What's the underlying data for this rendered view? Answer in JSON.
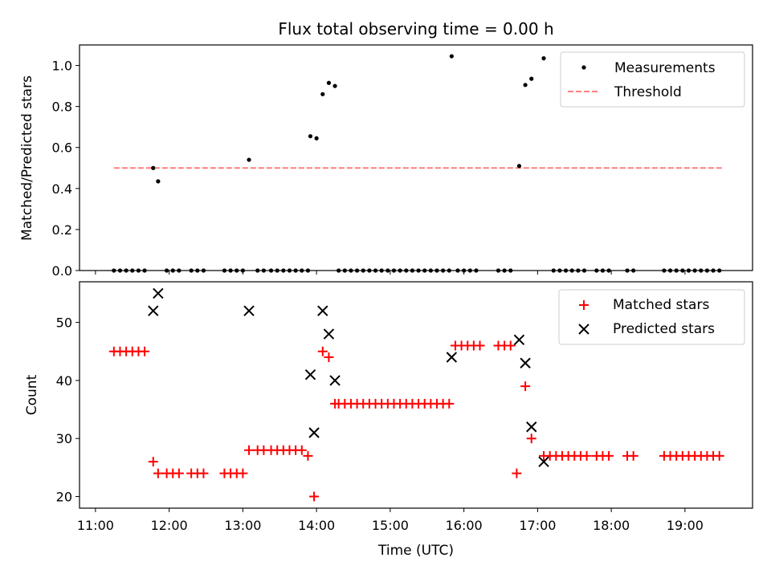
{
  "chart_data": [
    {
      "type": "scatter",
      "title": "Flux total observing time = 0.00 h",
      "xlabel": "",
      "ylabel": "Matched/Predicted stars",
      "xlim": [
        "10:47",
        "19:55"
      ],
      "ylim": [
        0,
        1.1
      ],
      "yticks": [
        0.0,
        0.2,
        0.4,
        0.6,
        0.8,
        1.0
      ],
      "ytick_labels": [
        "0.0",
        "0.2",
        "0.4",
        "0.6",
        "0.8",
        "1.0"
      ],
      "grid": false,
      "legend_position": "top-right",
      "series": [
        {
          "name": "Measurements",
          "color": "#000000",
          "marker": "dot",
          "points": [
            [
              "11:15",
              0
            ],
            [
              "11:20",
              0
            ],
            [
              "11:25",
              0
            ],
            [
              "11:30",
              0
            ],
            [
              "11:35",
              0
            ],
            [
              "11:40",
              0
            ],
            [
              "11:47",
              0.5
            ],
            [
              "11:51",
              0.435
            ],
            [
              "11:58",
              0
            ],
            [
              "12:03",
              0
            ],
            [
              "12:08",
              0
            ],
            [
              "12:18",
              0
            ],
            [
              "12:23",
              0
            ],
            [
              "12:28",
              0
            ],
            [
              "12:45",
              0
            ],
            [
              "12:50",
              0
            ],
            [
              "12:55",
              0
            ],
            [
              "13:00",
              0
            ],
            [
              "13:05",
              0.54
            ],
            [
              "13:12",
              0
            ],
            [
              "13:17",
              0
            ],
            [
              "13:23",
              0
            ],
            [
              "13:28",
              0
            ],
            [
              "13:33",
              0
            ],
            [
              "13:38",
              0
            ],
            [
              "13:43",
              0
            ],
            [
              "13:48",
              0
            ],
            [
              "13:53",
              0
            ],
            [
              "13:55",
              0.655
            ],
            [
              "14:00",
              0.645
            ],
            [
              "14:05",
              0.86
            ],
            [
              "14:10",
              0.915
            ],
            [
              "14:15",
              0.9
            ],
            [
              "14:18",
              0
            ],
            [
              "14:23",
              0
            ],
            [
              "14:28",
              0
            ],
            [
              "14:33",
              0
            ],
            [
              "14:38",
              0
            ],
            [
              "14:43",
              0
            ],
            [
              "14:48",
              0
            ],
            [
              "14:53",
              0
            ],
            [
              "14:58",
              0
            ],
            [
              "15:03",
              0
            ],
            [
              "15:08",
              0
            ],
            [
              "15:13",
              0
            ],
            [
              "15:18",
              0
            ],
            [
              "15:23",
              0
            ],
            [
              "15:28",
              0
            ],
            [
              "15:33",
              0
            ],
            [
              "15:38",
              0
            ],
            [
              "15:43",
              0
            ],
            [
              "15:48",
              0
            ],
            [
              "15:50",
              1.045
            ],
            [
              "15:55",
              0
            ],
            [
              "16:00",
              0
            ],
            [
              "16:05",
              0
            ],
            [
              "16:10",
              0
            ],
            [
              "16:28",
              0
            ],
            [
              "16:33",
              0
            ],
            [
              "16:38",
              0
            ],
            [
              "16:45",
              0.51
            ],
            [
              "16:50",
              0.905
            ],
            [
              "16:55",
              0.935
            ],
            [
              "17:05",
              1.035
            ],
            [
              "17:13",
              0
            ],
            [
              "17:18",
              0
            ],
            [
              "17:23",
              0
            ],
            [
              "17:28",
              0
            ],
            [
              "17:33",
              0
            ],
            [
              "17:38",
              0
            ],
            [
              "17:48",
              0
            ],
            [
              "17:53",
              0
            ],
            [
              "17:58",
              0
            ],
            [
              "18:13",
              0
            ],
            [
              "18:18",
              0
            ],
            [
              "18:43",
              0
            ],
            [
              "18:48",
              0
            ],
            [
              "18:53",
              0
            ],
            [
              "18:58",
              0
            ],
            [
              "19:03",
              0
            ],
            [
              "19:08",
              0
            ],
            [
              "19:13",
              0
            ],
            [
              "19:18",
              0
            ],
            [
              "19:23",
              0
            ],
            [
              "19:28",
              0
            ]
          ]
        },
        {
          "name": "Threshold",
          "color": "#ff7f7f",
          "style": "dashed",
          "points": [
            [
              "11:15",
              0.5
            ],
            [
              "19:30",
              0.5
            ]
          ]
        }
      ]
    },
    {
      "type": "scatter",
      "title": "",
      "xlabel": "Time (UTC)",
      "ylabel": "Count",
      "xlim": [
        "10:47",
        "19:55"
      ],
      "ylim": [
        18,
        57
      ],
      "xticks": [
        "11:00",
        "12:00",
        "13:00",
        "14:00",
        "15:00",
        "16:00",
        "17:00",
        "18:00",
        "19:00"
      ],
      "yticks": [
        20,
        30,
        40,
        50
      ],
      "ytick_labels": [
        "20",
        "30",
        "40",
        "50"
      ],
      "grid": false,
      "legend_position": "top-right",
      "series": [
        {
          "name": "Matched stars",
          "color": "#ff0000",
          "marker": "plus",
          "points": [
            [
              "11:15",
              45
            ],
            [
              "11:20",
              45
            ],
            [
              "11:25",
              45
            ],
            [
              "11:30",
              45
            ],
            [
              "11:35",
              45
            ],
            [
              "11:40",
              45
            ],
            [
              "11:47",
              26
            ],
            [
              "11:51",
              24
            ],
            [
              "11:58",
              24
            ],
            [
              "12:03",
              24
            ],
            [
              "12:08",
              24
            ],
            [
              "12:18",
              24
            ],
            [
              "12:23",
              24
            ],
            [
              "12:28",
              24
            ],
            [
              "12:45",
              24
            ],
            [
              "12:50",
              24
            ],
            [
              "12:55",
              24
            ],
            [
              "13:00",
              24
            ],
            [
              "13:05",
              28
            ],
            [
              "13:12",
              28
            ],
            [
              "13:17",
              28
            ],
            [
              "13:23",
              28
            ],
            [
              "13:28",
              28
            ],
            [
              "13:33",
              28
            ],
            [
              "13:38",
              28
            ],
            [
              "13:43",
              28
            ],
            [
              "13:48",
              28
            ],
            [
              "13:53",
              27
            ],
            [
              "13:58",
              20
            ],
            [
              "14:05",
              45
            ],
            [
              "14:10",
              44
            ],
            [
              "14:15",
              36
            ],
            [
              "14:18",
              36
            ],
            [
              "14:23",
              36
            ],
            [
              "14:28",
              36
            ],
            [
              "14:33",
              36
            ],
            [
              "14:38",
              36
            ],
            [
              "14:43",
              36
            ],
            [
              "14:48",
              36
            ],
            [
              "14:53",
              36
            ],
            [
              "14:58",
              36
            ],
            [
              "15:03",
              36
            ],
            [
              "15:08",
              36
            ],
            [
              "15:13",
              36
            ],
            [
              "15:18",
              36
            ],
            [
              "15:23",
              36
            ],
            [
              "15:28",
              36
            ],
            [
              "15:33",
              36
            ],
            [
              "15:38",
              36
            ],
            [
              "15:43",
              36
            ],
            [
              "15:48",
              36
            ],
            [
              "15:53",
              46
            ],
            [
              "15:58",
              46
            ],
            [
              "16:03",
              46
            ],
            [
              "16:08",
              46
            ],
            [
              "16:13",
              46
            ],
            [
              "16:28",
              46
            ],
            [
              "16:33",
              46
            ],
            [
              "16:38",
              46
            ],
            [
              "16:43",
              24
            ],
            [
              "16:50",
              39
            ],
            [
              "16:55",
              30
            ],
            [
              "17:05",
              27
            ],
            [
              "17:10",
              27
            ],
            [
              "17:15",
              27
            ],
            [
              "17:20",
              27
            ],
            [
              "17:25",
              27
            ],
            [
              "17:30",
              27
            ],
            [
              "17:35",
              27
            ],
            [
              "17:40",
              27
            ],
            [
              "17:48",
              27
            ],
            [
              "17:53",
              27
            ],
            [
              "17:58",
              27
            ],
            [
              "18:13",
              27
            ],
            [
              "18:18",
              27
            ],
            [
              "18:43",
              27
            ],
            [
              "18:48",
              27
            ],
            [
              "18:53",
              27
            ],
            [
              "18:58",
              27
            ],
            [
              "19:03",
              27
            ],
            [
              "19:08",
              27
            ],
            [
              "19:13",
              27
            ],
            [
              "19:18",
              27
            ],
            [
              "19:23",
              27
            ],
            [
              "19:28",
              27
            ]
          ]
        },
        {
          "name": "Predicted stars",
          "color": "#000000",
          "marker": "x",
          "points": [
            [
              "11:47",
              52
            ],
            [
              "11:51",
              55
            ],
            [
              "13:05",
              52
            ],
            [
              "13:55",
              41
            ],
            [
              "13:58",
              31
            ],
            [
              "14:05",
              52
            ],
            [
              "14:10",
              48
            ],
            [
              "14:15",
              40
            ],
            [
              "15:50",
              44
            ],
            [
              "16:45",
              47
            ],
            [
              "16:50",
              43
            ],
            [
              "16:55",
              32
            ],
            [
              "17:05",
              26
            ]
          ]
        }
      ]
    }
  ]
}
